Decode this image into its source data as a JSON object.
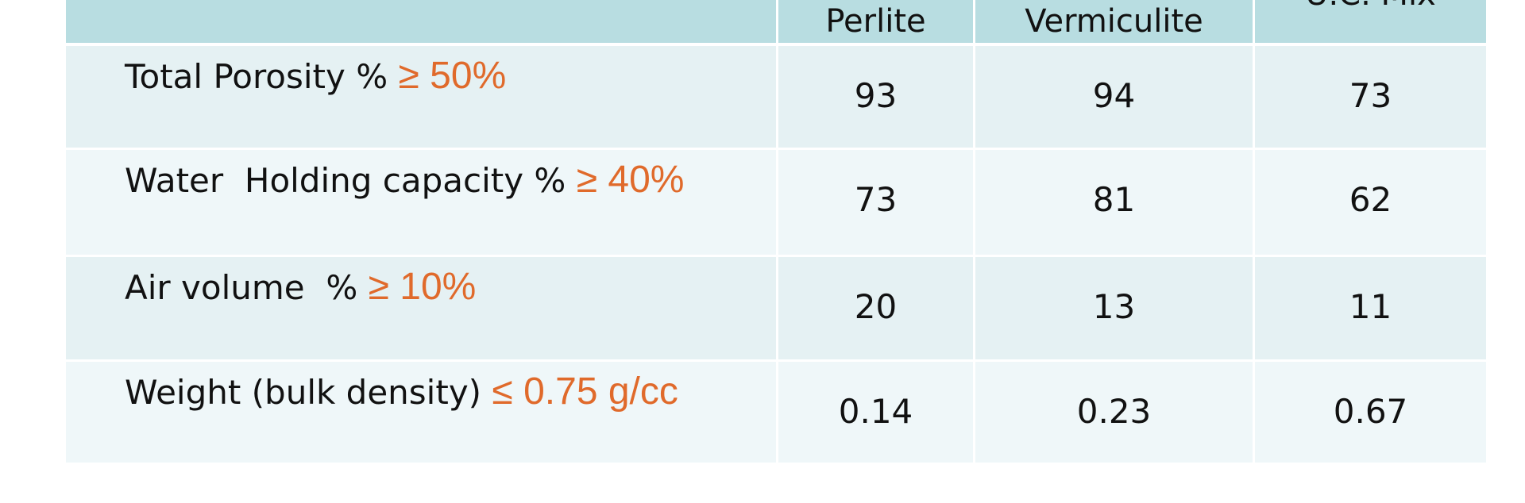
{
  "table": {
    "header": [
      "Perlite",
      "Vermiculite",
      "U.C. Mix"
    ],
    "rows": [
      {
        "label": "Total Porosity %",
        "criterion": "≥ 50%",
        "values": [
          93,
          94,
          73
        ]
      },
      {
        "label": "Water  Holding capacity %",
        "criterion": "≥ 40%",
        "values": [
          73,
          81,
          62
        ]
      },
      {
        "label": "Air volume  %",
        "criterion": "≥ 10%",
        "values": [
          20,
          13,
          11
        ]
      },
      {
        "label": "Weight (bulk density)",
        "criterion": "≤ 0.75 g/cc",
        "values": [
          0.14,
          0.23,
          0.67
        ]
      }
    ]
  }
}
